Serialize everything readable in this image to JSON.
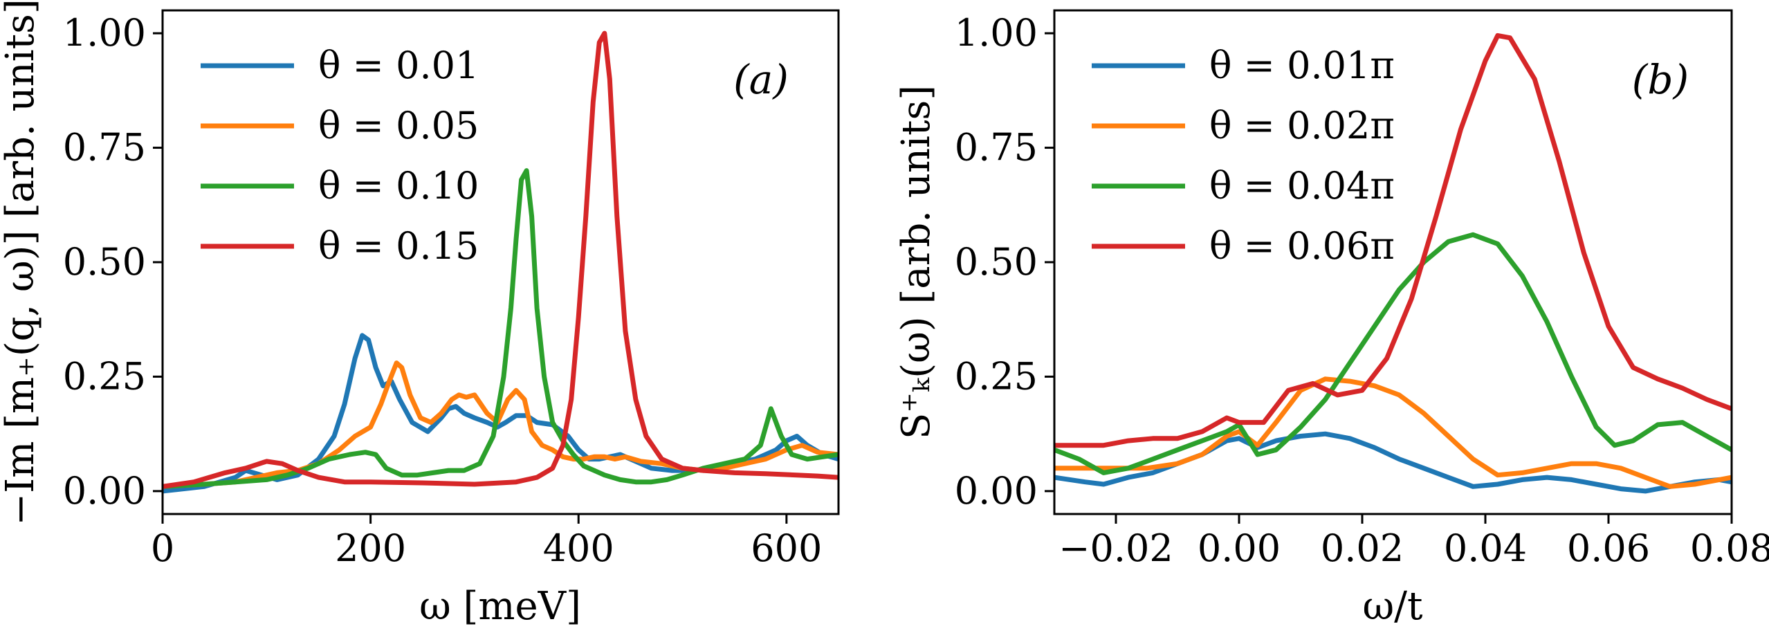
{
  "chart_data": [
    {
      "type": "line",
      "panel_label": "(a)",
      "xlabel": "ω [meV]",
      "ylabel": "−Im [m₊(q, ω)] [arb. units]",
      "xlim": [
        0,
        650
      ],
      "ylim": [
        -0.05,
        1.05
      ],
      "xticks": [
        0,
        200,
        400,
        600
      ],
      "xtick_labels": [
        "0",
        "200",
        "400",
        "600"
      ],
      "yticks": [
        0.0,
        0.25,
        0.5,
        0.75,
        1.0
      ],
      "ytick_labels": [
        "0.00",
        "0.25",
        "0.50",
        "0.75",
        "1.00"
      ],
      "legend_position": "top-left",
      "series": [
        {
          "name": "θ = 0.01",
          "color": "#1f77b4",
          "x": [
            0,
            40,
            70,
            80,
            95,
            110,
            130,
            150,
            165,
            175,
            185,
            192,
            198,
            205,
            212,
            220,
            228,
            240,
            255,
            268,
            275,
            282,
            290,
            300,
            312,
            322,
            330,
            340,
            350,
            360,
            375,
            390,
            400,
            410,
            420,
            430,
            440,
            455,
            470,
            490,
            510,
            530,
            550,
            570,
            590,
            600,
            610,
            620,
            635,
            650
          ],
          "y": [
            0.0,
            0.01,
            0.03,
            0.045,
            0.035,
            0.025,
            0.035,
            0.07,
            0.12,
            0.19,
            0.29,
            0.34,
            0.33,
            0.27,
            0.23,
            0.24,
            0.2,
            0.15,
            0.13,
            0.16,
            0.18,
            0.185,
            0.17,
            0.16,
            0.15,
            0.14,
            0.15,
            0.165,
            0.165,
            0.15,
            0.145,
            0.12,
            0.09,
            0.07,
            0.07,
            0.075,
            0.08,
            0.065,
            0.05,
            0.045,
            0.045,
            0.05,
            0.06,
            0.07,
            0.09,
            0.11,
            0.12,
            0.1,
            0.08,
            0.07
          ]
        },
        {
          "name": "θ = 0.05",
          "color": "#ff7f0e",
          "x": [
            0,
            40,
            70,
            90,
            110,
            130,
            150,
            170,
            185,
            200,
            210,
            218,
            225,
            230,
            238,
            248,
            258,
            268,
            278,
            285,
            292,
            300,
            312,
            322,
            332,
            340,
            348,
            355,
            365,
            375,
            385,
            395,
            405,
            415,
            425,
            435,
            445,
            460,
            480,
            500,
            520,
            540,
            560,
            580,
            600,
            615,
            630,
            650
          ],
          "y": [
            0.01,
            0.015,
            0.02,
            0.03,
            0.04,
            0.045,
            0.06,
            0.09,
            0.12,
            0.14,
            0.19,
            0.24,
            0.28,
            0.27,
            0.21,
            0.16,
            0.15,
            0.17,
            0.2,
            0.21,
            0.205,
            0.21,
            0.17,
            0.15,
            0.2,
            0.22,
            0.2,
            0.13,
            0.1,
            0.09,
            0.075,
            0.07,
            0.07,
            0.075,
            0.075,
            0.07,
            0.075,
            0.065,
            0.06,
            0.05,
            0.045,
            0.05,
            0.06,
            0.07,
            0.09,
            0.1,
            0.085,
            0.08
          ]
        },
        {
          "name": "θ = 0.10",
          "color": "#2ca02c",
          "x": [
            0,
            40,
            70,
            100,
            120,
            140,
            160,
            180,
            195,
            205,
            215,
            230,
            245,
            260,
            275,
            290,
            305,
            318,
            328,
            335,
            340,
            345,
            350,
            355,
            360,
            367,
            375,
            385,
            395,
            405,
            415,
            425,
            440,
            455,
            470,
            485,
            500,
            520,
            540,
            560,
            575,
            585,
            595,
            605,
            620,
            635,
            650
          ],
          "y": [
            0.01,
            0.015,
            0.02,
            0.025,
            0.035,
            0.05,
            0.07,
            0.08,
            0.085,
            0.08,
            0.05,
            0.035,
            0.035,
            0.04,
            0.045,
            0.045,
            0.06,
            0.12,
            0.25,
            0.4,
            0.55,
            0.68,
            0.7,
            0.6,
            0.4,
            0.25,
            0.15,
            0.11,
            0.08,
            0.055,
            0.045,
            0.035,
            0.025,
            0.02,
            0.02,
            0.025,
            0.035,
            0.05,
            0.06,
            0.07,
            0.1,
            0.18,
            0.12,
            0.08,
            0.07,
            0.075,
            0.08
          ]
        },
        {
          "name": "θ = 0.15",
          "color": "#d62728",
          "x": [
            0,
            30,
            60,
            80,
            100,
            115,
            130,
            150,
            175,
            200,
            250,
            300,
            340,
            360,
            375,
            385,
            393,
            400,
            407,
            414,
            420,
            425,
            430,
            437,
            445,
            455,
            465,
            480,
            500,
            520,
            550,
            580,
            610,
            630,
            650
          ],
          "y": [
            0.01,
            0.02,
            0.04,
            0.05,
            0.065,
            0.06,
            0.045,
            0.03,
            0.02,
            0.02,
            0.018,
            0.015,
            0.02,
            0.03,
            0.05,
            0.1,
            0.2,
            0.38,
            0.6,
            0.85,
            0.98,
            1.0,
            0.9,
            0.6,
            0.35,
            0.2,
            0.12,
            0.07,
            0.05,
            0.045,
            0.04,
            0.038,
            0.035,
            0.033,
            0.03
          ]
        }
      ]
    },
    {
      "type": "line",
      "panel_label": "(b)",
      "xlabel": "ω/t",
      "ylabel": "S⁺ₖ(ω) [arb. units]",
      "xlim": [
        -0.03,
        0.08
      ],
      "ylim": [
        -0.05,
        1.05
      ],
      "xticks": [
        -0.02,
        0.0,
        0.02,
        0.04,
        0.06,
        0.08
      ],
      "xtick_labels": [
        "−0.02",
        "0.00",
        "0.02",
        "0.04",
        "0.06",
        "0.08"
      ],
      "yticks": [
        0.0,
        0.25,
        0.5,
        0.75,
        1.0
      ],
      "ytick_labels": [
        "0.00",
        "0.25",
        "0.50",
        "0.75",
        "1.00"
      ],
      "legend_position": "top-left",
      "series": [
        {
          "name": "θ = 0.01π",
          "color": "#1f77b4",
          "x": [
            -0.03,
            -0.025,
            -0.022,
            -0.018,
            -0.014,
            -0.01,
            -0.006,
            -0.002,
            0.0,
            0.003,
            0.006,
            0.01,
            0.014,
            0.018,
            0.022,
            0.026,
            0.03,
            0.034,
            0.038,
            0.042,
            0.046,
            0.05,
            0.054,
            0.058,
            0.062,
            0.066,
            0.07,
            0.074,
            0.078,
            0.08
          ],
          "y": [
            0.03,
            0.02,
            0.015,
            0.03,
            0.04,
            0.06,
            0.08,
            0.11,
            0.115,
            0.095,
            0.11,
            0.12,
            0.125,
            0.115,
            0.095,
            0.07,
            0.05,
            0.03,
            0.01,
            0.015,
            0.025,
            0.03,
            0.025,
            0.015,
            0.005,
            0.0,
            0.01,
            0.02,
            0.025,
            0.02
          ]
        },
        {
          "name": "θ = 0.02π",
          "color": "#ff7f0e",
          "x": [
            -0.03,
            -0.025,
            -0.02,
            -0.015,
            -0.01,
            -0.006,
            -0.002,
            0.0,
            0.003,
            0.006,
            0.01,
            0.014,
            0.018,
            0.022,
            0.026,
            0.03,
            0.034,
            0.038,
            0.042,
            0.046,
            0.05,
            0.054,
            0.058,
            0.062,
            0.066,
            0.07,
            0.074,
            0.078,
            0.08
          ],
          "y": [
            0.05,
            0.05,
            0.05,
            0.05,
            0.06,
            0.08,
            0.12,
            0.13,
            0.1,
            0.15,
            0.22,
            0.245,
            0.24,
            0.23,
            0.21,
            0.17,
            0.12,
            0.07,
            0.035,
            0.04,
            0.05,
            0.06,
            0.06,
            0.05,
            0.03,
            0.01,
            0.015,
            0.025,
            0.03
          ]
        },
        {
          "name": "θ = 0.04π",
          "color": "#2ca02c",
          "x": [
            -0.03,
            -0.026,
            -0.022,
            -0.018,
            -0.014,
            -0.01,
            -0.006,
            -0.002,
            0.0,
            0.003,
            0.006,
            0.01,
            0.014,
            0.018,
            0.022,
            0.026,
            0.03,
            0.034,
            0.038,
            0.042,
            0.046,
            0.05,
            0.054,
            0.058,
            0.061,
            0.064,
            0.068,
            0.072,
            0.076,
            0.08
          ],
          "y": [
            0.09,
            0.07,
            0.04,
            0.05,
            0.07,
            0.09,
            0.11,
            0.13,
            0.145,
            0.08,
            0.09,
            0.14,
            0.2,
            0.28,
            0.36,
            0.44,
            0.5,
            0.545,
            0.56,
            0.54,
            0.47,
            0.37,
            0.25,
            0.14,
            0.1,
            0.11,
            0.145,
            0.15,
            0.12,
            0.09
          ]
        },
        {
          "name": "θ = 0.06π",
          "color": "#d62728",
          "x": [
            -0.03,
            -0.026,
            -0.022,
            -0.018,
            -0.014,
            -0.01,
            -0.006,
            -0.002,
            0.0,
            0.004,
            0.008,
            0.012,
            0.016,
            0.02,
            0.024,
            0.028,
            0.032,
            0.036,
            0.04,
            0.042,
            0.044,
            0.048,
            0.052,
            0.056,
            0.06,
            0.064,
            0.068,
            0.072,
            0.076,
            0.08
          ],
          "y": [
            0.1,
            0.1,
            0.1,
            0.11,
            0.115,
            0.115,
            0.13,
            0.16,
            0.15,
            0.15,
            0.22,
            0.235,
            0.21,
            0.22,
            0.29,
            0.42,
            0.6,
            0.79,
            0.94,
            0.995,
            0.99,
            0.9,
            0.72,
            0.52,
            0.36,
            0.27,
            0.245,
            0.225,
            0.2,
            0.18
          ]
        }
      ]
    }
  ]
}
